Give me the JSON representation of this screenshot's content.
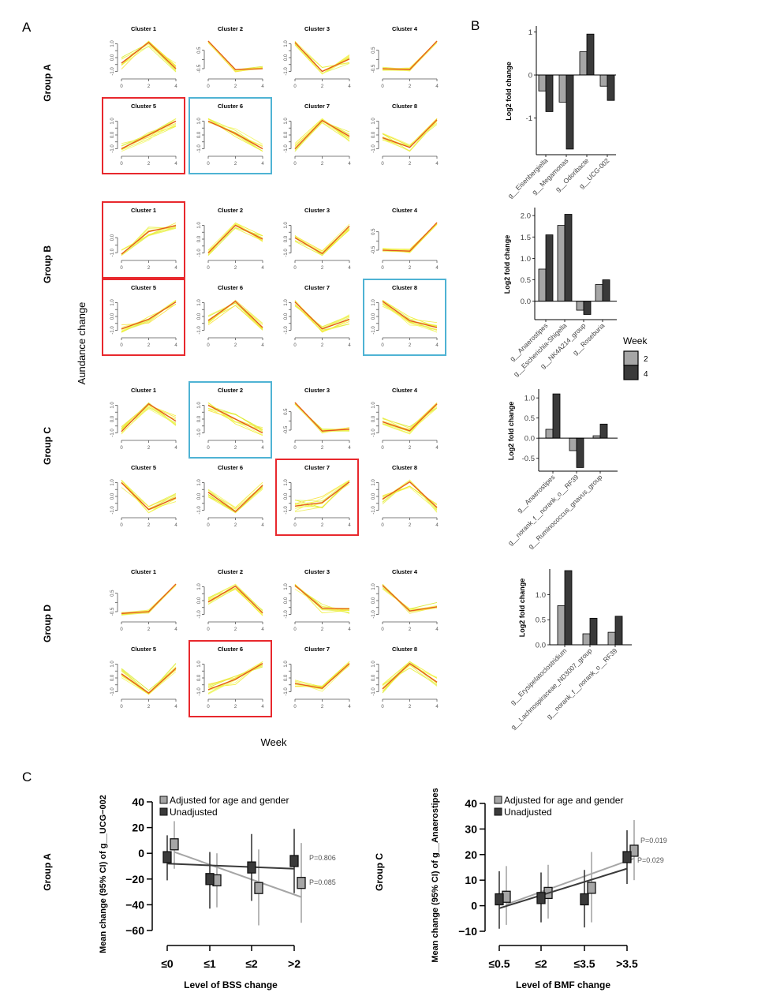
{
  "panels": {
    "A": "A",
    "B": "B",
    "C": "C"
  },
  "colors": {
    "highlight_red": "#e8282d",
    "highlight_blue": "#4fb3d4",
    "member_line": "#e8f03a",
    "centroid_line": "#e0402a",
    "week2_bar": "#a6a6a6",
    "week4_bar": "#3a3a3a",
    "adjusted": "#a6a6a6",
    "unadjusted": "#3a3a3a"
  },
  "panel_a": {
    "y_label": "Aundance change",
    "x_label": "Week",
    "x_ticks": [
      "0",
      "2",
      "4"
    ],
    "groups": [
      {
        "name": "Group A",
        "clusters": [
          {
            "title": "Cluster 1",
            "yticks": [
              "-1.0",
              "0.0",
              "1.0"
            ],
            "ylim": [
              -1.2,
              1.2
            ],
            "centroid": [
              -0.4,
              1.1,
              -0.8
            ],
            "spread": 0.45,
            "highlight": ""
          },
          {
            "title": "Cluster 2",
            "yticks": [
              "-0.5",
              "0.5"
            ],
            "ylim": [
              -0.8,
              1.0
            ],
            "centroid": [
              1.0,
              -0.55,
              -0.5
            ],
            "spread": 0.12,
            "highlight": ""
          },
          {
            "title": "Cluster 3",
            "yticks": [
              "-1.0",
              "0.0",
              "1.0"
            ],
            "ylim": [
              -1.2,
              1.2
            ],
            "centroid": [
              1.1,
              -1.0,
              -0.1
            ],
            "spread": 0.35,
            "highlight": ""
          },
          {
            "title": "Cluster 4",
            "yticks": [
              "-0.5",
              "0.5"
            ],
            "ylim": [
              -0.8,
              1.0
            ],
            "centroid": [
              -0.5,
              -0.55,
              1.0
            ],
            "spread": 0.1,
            "highlight": ""
          },
          {
            "title": "Cluster 5",
            "yticks": [
              "-1.0",
              "0.0",
              "1.0"
            ],
            "ylim": [
              -1.2,
              1.2
            ],
            "centroid": [
              -1.0,
              0.0,
              1.0
            ],
            "spread": 0.4,
            "highlight": "red"
          },
          {
            "title": "Cluster 6",
            "yticks": [
              "-1.0",
              "0.0",
              "1.0"
            ],
            "ylim": [
              -1.2,
              1.2
            ],
            "centroid": [
              1.0,
              0.1,
              -1.0
            ],
            "spread": 0.4,
            "highlight": "blue"
          },
          {
            "title": "Cluster 7",
            "yticks": [
              "-1.0",
              "0.0",
              "1.0"
            ],
            "ylim": [
              -1.2,
              1.2
            ],
            "centroid": [
              -1.0,
              1.05,
              -0.1
            ],
            "spread": 0.4,
            "highlight": ""
          },
          {
            "title": "Cluster 8",
            "yticks": [
              "-1.0",
              "0.0",
              "1.0"
            ],
            "ylim": [
              -1.2,
              1.2
            ],
            "centroid": [
              -0.2,
              -0.9,
              1.1
            ],
            "spread": 0.35,
            "highlight": ""
          }
        ]
      },
      {
        "name": "Group B",
        "clusters": [
          {
            "title": "Cluster 1",
            "yticks": [
              "-1.0",
              "0.0"
            ],
            "ylim": [
              -1.2,
              1.0
            ],
            "centroid": [
              -1.1,
              0.4,
              0.8
            ],
            "spread": 0.3,
            "highlight": "red"
          },
          {
            "title": "Cluster 2",
            "yticks": [
              "-1.0",
              "0.0",
              "1.0"
            ],
            "ylim": [
              -1.2,
              1.2
            ],
            "centroid": [
              -1.0,
              1.0,
              0.0
            ],
            "spread": 0.3,
            "highlight": ""
          },
          {
            "title": "Cluster 3",
            "yticks": [
              "-1.0",
              "0.0",
              "1.0"
            ],
            "ylim": [
              -1.2,
              1.2
            ],
            "centroid": [
              0.1,
              -1.05,
              0.95
            ],
            "spread": 0.3,
            "highlight": ""
          },
          {
            "title": "Cluster 4",
            "yticks": [
              "-0.5",
              "0.5"
            ],
            "ylim": [
              -0.8,
              1.0
            ],
            "centroid": [
              -0.5,
              -0.55,
              1.0
            ],
            "spread": 0.12,
            "highlight": ""
          },
          {
            "title": "Cluster 5",
            "yticks": [
              "-1.0",
              "0.0",
              "1.0"
            ],
            "ylim": [
              -1.2,
              1.2
            ],
            "centroid": [
              -0.9,
              -0.2,
              1.05
            ],
            "spread": 0.3,
            "highlight": "red"
          },
          {
            "title": "Cluster 6",
            "yticks": [
              "-1.0",
              "0.0",
              "1.0"
            ],
            "ylim": [
              -1.2,
              1.2
            ],
            "centroid": [
              -0.3,
              1.1,
              -0.8
            ],
            "spread": 0.4,
            "highlight": ""
          },
          {
            "title": "Cluster 7",
            "yticks": [
              "-1.0",
              "0.0",
              "1.0"
            ],
            "ylim": [
              -1.2,
              1.2
            ],
            "centroid": [
              1.05,
              -0.9,
              -0.2
            ],
            "spread": 0.35,
            "highlight": ""
          },
          {
            "title": "Cluster 8",
            "yticks": [
              "-1.0",
              "0.0",
              "1.0"
            ],
            "ylim": [
              -1.2,
              1.2
            ],
            "centroid": [
              1.1,
              -0.3,
              -0.8
            ],
            "spread": 0.4,
            "highlight": "blue"
          }
        ]
      },
      {
        "name": "Group C",
        "clusters": [
          {
            "title": "Cluster 1",
            "yticks": [
              "-1.0",
              "0.0",
              "1.0"
            ],
            "ylim": [
              -1.2,
              1.2
            ],
            "centroid": [
              -0.9,
              1.1,
              -0.15
            ],
            "spread": 0.4,
            "highlight": ""
          },
          {
            "title": "Cluster 2",
            "yticks": [
              "-1.0",
              "0.0",
              "1.0"
            ],
            "ylim": [
              -1.2,
              1.2
            ],
            "centroid": [
              1.0,
              0.0,
              -1.0
            ],
            "spread": 0.4,
            "highlight": "blue"
          },
          {
            "title": "Cluster 3",
            "yticks": [
              "-0.5",
              "0.5"
            ],
            "ylim": [
              -0.8,
              1.0
            ],
            "centroid": [
              1.0,
              -0.55,
              -0.45
            ],
            "spread": 0.12,
            "highlight": ""
          },
          {
            "title": "Cluster 4",
            "yticks": [
              "-1.0",
              "0.0",
              "1.0"
            ],
            "ylim": [
              -1.2,
              1.2
            ],
            "centroid": [
              -0.2,
              -0.85,
              1.1
            ],
            "spread": 0.3,
            "highlight": ""
          },
          {
            "title": "Cluster 5",
            "yticks": [
              "-1.0",
              "0.0",
              "1.0"
            ],
            "ylim": [
              -1.2,
              1.2
            ],
            "centroid": [
              1.0,
              -0.95,
              -0.1
            ],
            "spread": 0.35,
            "highlight": ""
          },
          {
            "title": "Cluster 6",
            "yticks": [
              "-1.0",
              "0.0",
              "1.0"
            ],
            "ylim": [
              -1.2,
              1.2
            ],
            "centroid": [
              0.3,
              -1.1,
              0.8
            ],
            "spread": 0.35,
            "highlight": ""
          },
          {
            "title": "Cluster 7",
            "yticks": [
              "-1.0",
              "0.0",
              "1.0"
            ],
            "ylim": [
              -1.2,
              1.2
            ],
            "centroid": [
              -0.7,
              -0.45,
              1.05
            ],
            "spread": 0.45,
            "highlight": "red"
          },
          {
            "title": "Cluster 8",
            "yticks": [
              "-1.0",
              "0.0",
              "1.0"
            ],
            "ylim": [
              -1.2,
              1.2
            ],
            "centroid": [
              -0.2,
              1.05,
              -0.8
            ],
            "spread": 0.4,
            "highlight": ""
          }
        ]
      },
      {
        "name": "Group D",
        "clusters": [
          {
            "title": "Cluster 1",
            "yticks": [
              "-0.5",
              "0.5"
            ],
            "ylim": [
              -0.8,
              1.0
            ],
            "centroid": [
              -0.6,
              -0.5,
              1.0
            ],
            "spread": 0.1,
            "highlight": ""
          },
          {
            "title": "Cluster 2",
            "yticks": [
              "-1.0",
              "0.0",
              "1.0"
            ],
            "ylim": [
              -1.2,
              1.2
            ],
            "centroid": [
              -0.1,
              1.05,
              -0.9
            ],
            "spread": 0.4,
            "highlight": ""
          },
          {
            "title": "Cluster 3",
            "yticks": [
              "-1.0",
              "0.0",
              "1.0"
            ],
            "ylim": [
              -1.2,
              1.2
            ],
            "centroid": [
              1.1,
              -0.55,
              -0.6
            ],
            "spread": 0.35,
            "highlight": ""
          },
          {
            "title": "Cluster 4",
            "yticks": [
              "-1.0",
              "0.0",
              "1.0"
            ],
            "ylim": [
              -1.2,
              1.2
            ],
            "centroid": [
              1.1,
              -0.75,
              -0.45
            ],
            "spread": 0.35,
            "highlight": ""
          },
          {
            "title": "Cluster 5",
            "yticks": [
              "-1.0",
              "0.0",
              "1.0"
            ],
            "ylim": [
              -1.2,
              1.2
            ],
            "centroid": [
              0.3,
              -1.1,
              0.7
            ],
            "spread": 0.4,
            "highlight": ""
          },
          {
            "title": "Cluster 6",
            "yticks": [
              "-1.0",
              "0.0",
              "1.0"
            ],
            "ylim": [
              -1.2,
              1.2
            ],
            "centroid": [
              -0.85,
              -0.1,
              1.05
            ],
            "spread": 0.4,
            "highlight": "red"
          },
          {
            "title": "Cluster 7",
            "yticks": [
              "-1.0",
              "0.0",
              "1.0"
            ],
            "ylim": [
              -1.2,
              1.2
            ],
            "centroid": [
              -0.4,
              -0.75,
              1.05
            ],
            "spread": 0.25,
            "highlight": ""
          },
          {
            "title": "Cluster 8",
            "yticks": [
              "-1.0",
              "0.0",
              "1.0"
            ],
            "ylim": [
              -1.2,
              1.2
            ],
            "centroid": [
              -0.8,
              1.05,
              -0.3
            ],
            "spread": 0.35,
            "highlight": ""
          }
        ]
      }
    ]
  },
  "chart_data": [
    {
      "type": "bar",
      "id": "B1",
      "ylabel": "Log2 fold change",
      "categories": [
        "g__Eisenbergiella",
        "g__Megamonas",
        "g__Odoribacte",
        "g__UCG-002"
      ],
      "series": [
        {
          "name": "2",
          "values": [
            -0.37,
            -0.63,
            0.54,
            -0.26
          ]
        },
        {
          "name": "4",
          "values": [
            -0.85,
            -1.72,
            0.95,
            -0.59
          ]
        }
      ],
      "ylim": [
        -1.85,
        1.1
      ],
      "yticks": [
        -1,
        0,
        1
      ],
      "ytick_labels": [
        "-1",
        "0",
        "1"
      ]
    },
    {
      "type": "bar",
      "id": "B2",
      "ylabel": "Log2 fold change",
      "categories": [
        "g__Anaerostipes",
        "g__Escherichia-Shigella",
        "g__NK4A214_group",
        "g__Roseburia"
      ],
      "series": [
        {
          "name": "2",
          "values": [
            0.75,
            1.77,
            -0.21,
            0.39
          ]
        },
        {
          "name": "4",
          "values": [
            1.55,
            2.03,
            -0.31,
            0.5
          ]
        }
      ],
      "ylim": [
        -0.43,
        2.15
      ],
      "yticks": [
        0,
        0.5,
        1,
        1.5,
        2
      ],
      "ytick_labels": [
        "0.0",
        "0.5",
        "1.0",
        "1.5",
        "2.0"
      ],
      "legend": {
        "title": "Week",
        "entries": [
          "2",
          "4"
        ],
        "position": "right"
      }
    },
    {
      "type": "bar",
      "id": "B3",
      "ylabel": "Log2 fold change",
      "categories": [
        "g__Anaerostipes",
        "g__norank_f__norank_o__RF39",
        "g__Ruminococcus_gnavus_group"
      ],
      "series": [
        {
          "name": "2",
          "values": [
            0.22,
            -0.31,
            0.06
          ]
        },
        {
          "name": "4",
          "values": [
            1.1,
            -0.73,
            0.35
          ]
        }
      ],
      "ylim": [
        -0.82,
        1.18
      ],
      "yticks": [
        -0.5,
        0,
        0.5,
        1
      ],
      "ytick_labels": [
        "-0.5",
        "0.0",
        "0.5",
        "1.0"
      ]
    },
    {
      "type": "bar",
      "id": "B4",
      "ylabel": "Log2 fold change",
      "categories": [
        "g__Erysipelatoclostridium",
        "g__Lachnospiraceae_ND3007_group",
        "g__norank_f__norank_o__RF39"
      ],
      "series": [
        {
          "name": "2",
          "values": [
            0.78,
            0.22,
            0.25
          ]
        },
        {
          "name": "4",
          "values": [
            1.48,
            0.53,
            0.57
          ]
        }
      ],
      "ylim": [
        0,
        1.48
      ],
      "yticks": [
        0,
        0.5,
        1
      ],
      "ytick_labels": [
        "0.0",
        "0.5",
        "1.0"
      ]
    },
    {
      "type": "scatter",
      "id": "C1",
      "group_label": "Group A",
      "title": "",
      "xlabel": "Level of BSS change",
      "ylabel": "Mean change (95% CI) of g__UCG−002",
      "categories": [
        "≤0",
        "≤1",
        "≤2",
        ">2"
      ],
      "ylim": [
        -60,
        40
      ],
      "yticks": [
        -60,
        -40,
        -20,
        0,
        20,
        40
      ],
      "ytick_labels": [
        "−60",
        "−40",
        "−20",
        "0",
        "20",
        "40"
      ],
      "series": [
        {
          "name": "Adjusted for age and gender",
          "values": [
            7,
            -21,
            -27,
            -23
          ],
          "ci_low": [
            -12,
            -42,
            -56,
            -54
          ],
          "ci_high": [
            25,
            0,
            3,
            8
          ],
          "trend": [
            1,
            -34
          ],
          "p_label": "P=0.085"
        },
        {
          "name": "Unadjusted",
          "values": [
            -3,
            -20,
            -11,
            -6
          ],
          "ci_low": [
            -21,
            -43,
            -37,
            -31
          ],
          "ci_high": [
            14,
            1,
            15,
            19
          ],
          "trend": [
            -8,
            -12
          ],
          "p_label": "P=0.806"
        }
      ],
      "legend": {
        "position": "top-left"
      }
    },
    {
      "type": "scatter",
      "id": "C2",
      "group_label": "Group C",
      "title": "",
      "xlabel": "Level of BMF change",
      "ylabel": "Mean change (95% CI) of g__Anaerostipes",
      "categories": [
        "≤0.5",
        "≤2",
        "≤3.5",
        ">3.5"
      ],
      "ylim": [
        -10,
        40
      ],
      "yticks": [
        -10,
        0,
        10,
        20,
        30,
        40
      ],
      "ytick_labels": [
        "−10",
        "0",
        "10",
        "20",
        "30",
        "40"
      ],
      "series": [
        {
          "name": "Adjusted for age and gender",
          "values": [
            3.5,
            5,
            7,
            21.5
          ],
          "ci_low": [
            -7.5,
            -5,
            -6.5,
            10
          ],
          "ci_high": [
            15.5,
            16,
            21,
            33.5
          ],
          "trend": [
            0.5,
            18.5
          ],
          "p_label": "P=0.019"
        },
        {
          "name": "Unadjusted",
          "values": [
            2.5,
            3,
            2.5,
            19
          ],
          "ci_low": [
            -9,
            -6.5,
            -8.5,
            8.5
          ],
          "ci_high": [
            13.5,
            13,
            14,
            29.5
          ],
          "trend": [
            -1,
            14.5
          ],
          "p_label": "P=0.029"
        }
      ],
      "legend": {
        "position": "top-left"
      }
    }
  ]
}
